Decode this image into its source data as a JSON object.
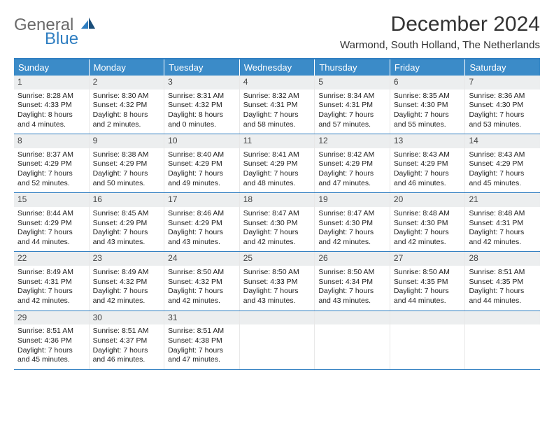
{
  "brand": {
    "word1": "General",
    "word2": "Blue"
  },
  "title": "December 2024",
  "location": "Warmond, South Holland, The Netherlands",
  "colors": {
    "header_bar": "#3b8bc8",
    "rule": "#2f7ec1",
    "daynum_bg": "#eceeef",
    "text": "#333333",
    "bg": "#ffffff"
  },
  "typography": {
    "title_fontsize": 30,
    "location_fontsize": 15,
    "dow_fontsize": 13,
    "cell_fontsize": 10.5
  },
  "days_of_week": [
    "Sunday",
    "Monday",
    "Tuesday",
    "Wednesday",
    "Thursday",
    "Friday",
    "Saturday"
  ],
  "weeks": [
    [
      {
        "n": "1",
        "sr": "Sunrise: 8:28 AM",
        "ss": "Sunset: 4:33 PM",
        "dl": "Daylight: 8 hours and 4 minutes."
      },
      {
        "n": "2",
        "sr": "Sunrise: 8:30 AM",
        "ss": "Sunset: 4:32 PM",
        "dl": "Daylight: 8 hours and 2 minutes."
      },
      {
        "n": "3",
        "sr": "Sunrise: 8:31 AM",
        "ss": "Sunset: 4:32 PM",
        "dl": "Daylight: 8 hours and 0 minutes."
      },
      {
        "n": "4",
        "sr": "Sunrise: 8:32 AM",
        "ss": "Sunset: 4:31 PM",
        "dl": "Daylight: 7 hours and 58 minutes."
      },
      {
        "n": "5",
        "sr": "Sunrise: 8:34 AM",
        "ss": "Sunset: 4:31 PM",
        "dl": "Daylight: 7 hours and 57 minutes."
      },
      {
        "n": "6",
        "sr": "Sunrise: 8:35 AM",
        "ss": "Sunset: 4:30 PM",
        "dl": "Daylight: 7 hours and 55 minutes."
      },
      {
        "n": "7",
        "sr": "Sunrise: 8:36 AM",
        "ss": "Sunset: 4:30 PM",
        "dl": "Daylight: 7 hours and 53 minutes."
      }
    ],
    [
      {
        "n": "8",
        "sr": "Sunrise: 8:37 AM",
        "ss": "Sunset: 4:29 PM",
        "dl": "Daylight: 7 hours and 52 minutes."
      },
      {
        "n": "9",
        "sr": "Sunrise: 8:38 AM",
        "ss": "Sunset: 4:29 PM",
        "dl": "Daylight: 7 hours and 50 minutes."
      },
      {
        "n": "10",
        "sr": "Sunrise: 8:40 AM",
        "ss": "Sunset: 4:29 PM",
        "dl": "Daylight: 7 hours and 49 minutes."
      },
      {
        "n": "11",
        "sr": "Sunrise: 8:41 AM",
        "ss": "Sunset: 4:29 PM",
        "dl": "Daylight: 7 hours and 48 minutes."
      },
      {
        "n": "12",
        "sr": "Sunrise: 8:42 AM",
        "ss": "Sunset: 4:29 PM",
        "dl": "Daylight: 7 hours and 47 minutes."
      },
      {
        "n": "13",
        "sr": "Sunrise: 8:43 AM",
        "ss": "Sunset: 4:29 PM",
        "dl": "Daylight: 7 hours and 46 minutes."
      },
      {
        "n": "14",
        "sr": "Sunrise: 8:43 AM",
        "ss": "Sunset: 4:29 PM",
        "dl": "Daylight: 7 hours and 45 minutes."
      }
    ],
    [
      {
        "n": "15",
        "sr": "Sunrise: 8:44 AM",
        "ss": "Sunset: 4:29 PM",
        "dl": "Daylight: 7 hours and 44 minutes."
      },
      {
        "n": "16",
        "sr": "Sunrise: 8:45 AM",
        "ss": "Sunset: 4:29 PM",
        "dl": "Daylight: 7 hours and 43 minutes."
      },
      {
        "n": "17",
        "sr": "Sunrise: 8:46 AM",
        "ss": "Sunset: 4:29 PM",
        "dl": "Daylight: 7 hours and 43 minutes."
      },
      {
        "n": "18",
        "sr": "Sunrise: 8:47 AM",
        "ss": "Sunset: 4:30 PM",
        "dl": "Daylight: 7 hours and 42 minutes."
      },
      {
        "n": "19",
        "sr": "Sunrise: 8:47 AM",
        "ss": "Sunset: 4:30 PM",
        "dl": "Daylight: 7 hours and 42 minutes."
      },
      {
        "n": "20",
        "sr": "Sunrise: 8:48 AM",
        "ss": "Sunset: 4:30 PM",
        "dl": "Daylight: 7 hours and 42 minutes."
      },
      {
        "n": "21",
        "sr": "Sunrise: 8:48 AM",
        "ss": "Sunset: 4:31 PM",
        "dl": "Daylight: 7 hours and 42 minutes."
      }
    ],
    [
      {
        "n": "22",
        "sr": "Sunrise: 8:49 AM",
        "ss": "Sunset: 4:31 PM",
        "dl": "Daylight: 7 hours and 42 minutes."
      },
      {
        "n": "23",
        "sr": "Sunrise: 8:49 AM",
        "ss": "Sunset: 4:32 PM",
        "dl": "Daylight: 7 hours and 42 minutes."
      },
      {
        "n": "24",
        "sr": "Sunrise: 8:50 AM",
        "ss": "Sunset: 4:32 PM",
        "dl": "Daylight: 7 hours and 42 minutes."
      },
      {
        "n": "25",
        "sr": "Sunrise: 8:50 AM",
        "ss": "Sunset: 4:33 PM",
        "dl": "Daylight: 7 hours and 43 minutes."
      },
      {
        "n": "26",
        "sr": "Sunrise: 8:50 AM",
        "ss": "Sunset: 4:34 PM",
        "dl": "Daylight: 7 hours and 43 minutes."
      },
      {
        "n": "27",
        "sr": "Sunrise: 8:50 AM",
        "ss": "Sunset: 4:35 PM",
        "dl": "Daylight: 7 hours and 44 minutes."
      },
      {
        "n": "28",
        "sr": "Sunrise: 8:51 AM",
        "ss": "Sunset: 4:35 PM",
        "dl": "Daylight: 7 hours and 44 minutes."
      }
    ],
    [
      {
        "n": "29",
        "sr": "Sunrise: 8:51 AM",
        "ss": "Sunset: 4:36 PM",
        "dl": "Daylight: 7 hours and 45 minutes."
      },
      {
        "n": "30",
        "sr": "Sunrise: 8:51 AM",
        "ss": "Sunset: 4:37 PM",
        "dl": "Daylight: 7 hours and 46 minutes."
      },
      {
        "n": "31",
        "sr": "Sunrise: 8:51 AM",
        "ss": "Sunset: 4:38 PM",
        "dl": "Daylight: 7 hours and 47 minutes."
      },
      null,
      null,
      null,
      null
    ]
  ]
}
